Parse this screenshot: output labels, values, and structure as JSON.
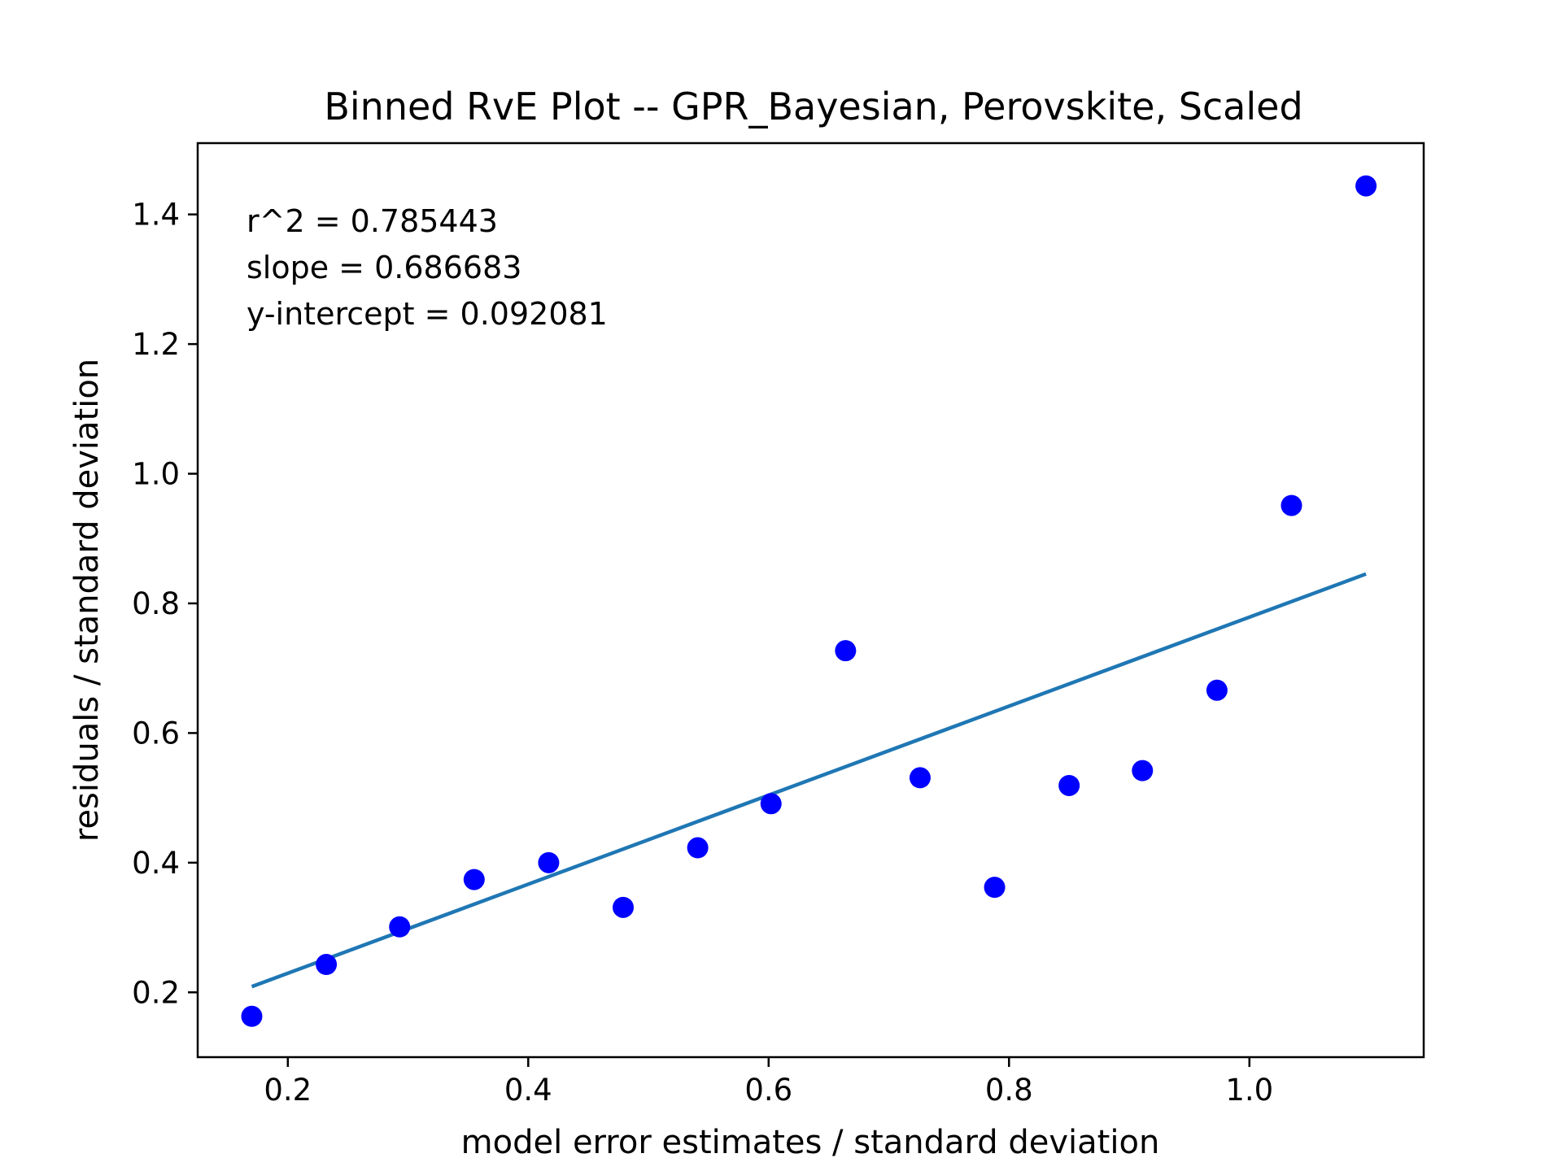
{
  "chart_data": {
    "type": "scatter",
    "title": "Binned RvE Plot -- GPR_Bayesian, Perovskite, Scaled",
    "xlabel": "model error estimates / standard deviation",
    "ylabel": "residuals / standard deviation",
    "xlim": [
      0.125,
      1.145
    ],
    "ylim": [
      0.1,
      1.51
    ],
    "xticks": [
      0.2,
      0.4,
      0.6,
      0.8,
      1.0
    ],
    "xtick_labels": [
      "0.2",
      "0.4",
      "0.6",
      "0.8",
      "1.0"
    ],
    "yticks": [
      0.2,
      0.4,
      0.6,
      0.8,
      1.0,
      1.2,
      1.4
    ],
    "ytick_labels": [
      "0.2",
      "0.4",
      "0.6",
      "0.8",
      "1.0",
      "1.2",
      "1.4"
    ],
    "grid": false,
    "legend": "none",
    "points": {
      "color": "#0000ff",
      "x": [
        0.17,
        0.232,
        0.293,
        0.355,
        0.417,
        0.479,
        0.541,
        0.602,
        0.664,
        0.726,
        0.788,
        0.85,
        0.911,
        0.973,
        1.035,
        1.097
      ],
      "y": [
        0.163,
        0.243,
        0.301,
        0.374,
        0.4,
        0.331,
        0.423,
        0.491,
        0.727,
        0.531,
        0.362,
        0.519,
        0.542,
        0.666,
        0.951,
        1.444
      ]
    },
    "fit_line": {
      "color": "#1f77b4",
      "slope": 0.686683,
      "intercept": 0.092081,
      "x_range": [
        0.17,
        1.097
      ]
    },
    "annotations": [
      "r^2 = 0.785443",
      "slope = 0.686683",
      "y-intercept = 0.092081"
    ]
  }
}
